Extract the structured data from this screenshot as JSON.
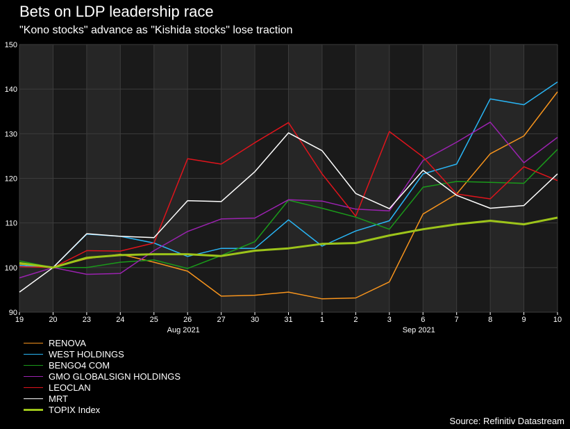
{
  "chart_data": {
    "type": "line",
    "title": "Bets on LDP leadership race",
    "subtitle": "\"Kono stocks\" advance as \"Kishida stocks\" lose traction",
    "source": "Source: Refinitiv Datastream",
    "categories": [
      "19",
      "20",
      "23",
      "24",
      "25",
      "26",
      "27",
      "30",
      "31",
      "1",
      "2",
      "3",
      "6",
      "7",
      "8",
      "9",
      "10"
    ],
    "month_labels": [
      {
        "label": "Aug 2021",
        "index": 5
      },
      {
        "label": "Sep 2021",
        "index": 12
      }
    ],
    "ylim": [
      90,
      150
    ],
    "yticks": [
      90,
      100,
      110,
      120,
      130,
      140,
      150
    ],
    "legend_position": "bottom-left",
    "series": [
      {
        "name": "RENOVA",
        "color": "#f7941d",
        "width": 1.5,
        "values": [
          100.8,
          100,
          102,
          103,
          101.2,
          99.2,
          93.6,
          93.8,
          94.5,
          93.0,
          93.2,
          96.8,
          112,
          116.5,
          125.5,
          129.5,
          139.4
        ]
      },
      {
        "name": "WEST HOLDINGS",
        "color": "#29b6f6",
        "width": 1.5,
        "values": [
          100.5,
          100,
          107.5,
          107,
          105.5,
          102.5,
          104.3,
          104.3,
          110.7,
          104.8,
          108.2,
          110.5,
          121,
          123.2,
          137.8,
          136.5,
          141.6
        ]
      },
      {
        "name": "BENGO4 COM",
        "color": "#1a9a1a",
        "width": 1.5,
        "values": [
          101.5,
          100,
          100,
          101.2,
          101.7,
          99.8,
          102.7,
          105.8,
          115.1,
          113.3,
          111.3,
          108.6,
          118,
          119.3,
          119.1,
          118.9,
          126.5
        ]
      },
      {
        "name": "GMO GLOBALSIGN HOLDINGS",
        "color": "#9b22b0",
        "width": 1.5,
        "values": [
          97.7,
          100,
          98.5,
          98.7,
          103.8,
          108.1,
          110.9,
          111.1,
          115.2,
          114.9,
          113.1,
          112.7,
          124,
          128.1,
          132.6,
          123.5,
          129.2
        ]
      },
      {
        "name": "LEOCLAN",
        "color": "#e0141c",
        "width": 1.5,
        "values": [
          100.2,
          100,
          103.8,
          103.7,
          105.5,
          124.4,
          123.2,
          128,
          132.5,
          121,
          111.5,
          130.5,
          124.8,
          116.5,
          115.4,
          122.6,
          119.5
        ]
      },
      {
        "name": "MRT",
        "color": "#ffffff",
        "width": 1.5,
        "values": [
          94.5,
          100,
          107.6,
          107,
          106.7,
          115,
          114.8,
          121.5,
          130.2,
          126.2,
          116.6,
          113.2,
          121.8,
          116.2,
          113.3,
          113.9,
          121
        ]
      },
      {
        "name": "TOPIX Index",
        "color": "#9dc41a",
        "width": 3,
        "values": [
          101,
          100,
          102.2,
          102.8,
          103,
          103,
          102.6,
          103.8,
          104.3,
          105.3,
          105.5,
          107.2,
          108.6,
          109.7,
          110.5,
          109.7,
          111.2
        ]
      }
    ]
  }
}
